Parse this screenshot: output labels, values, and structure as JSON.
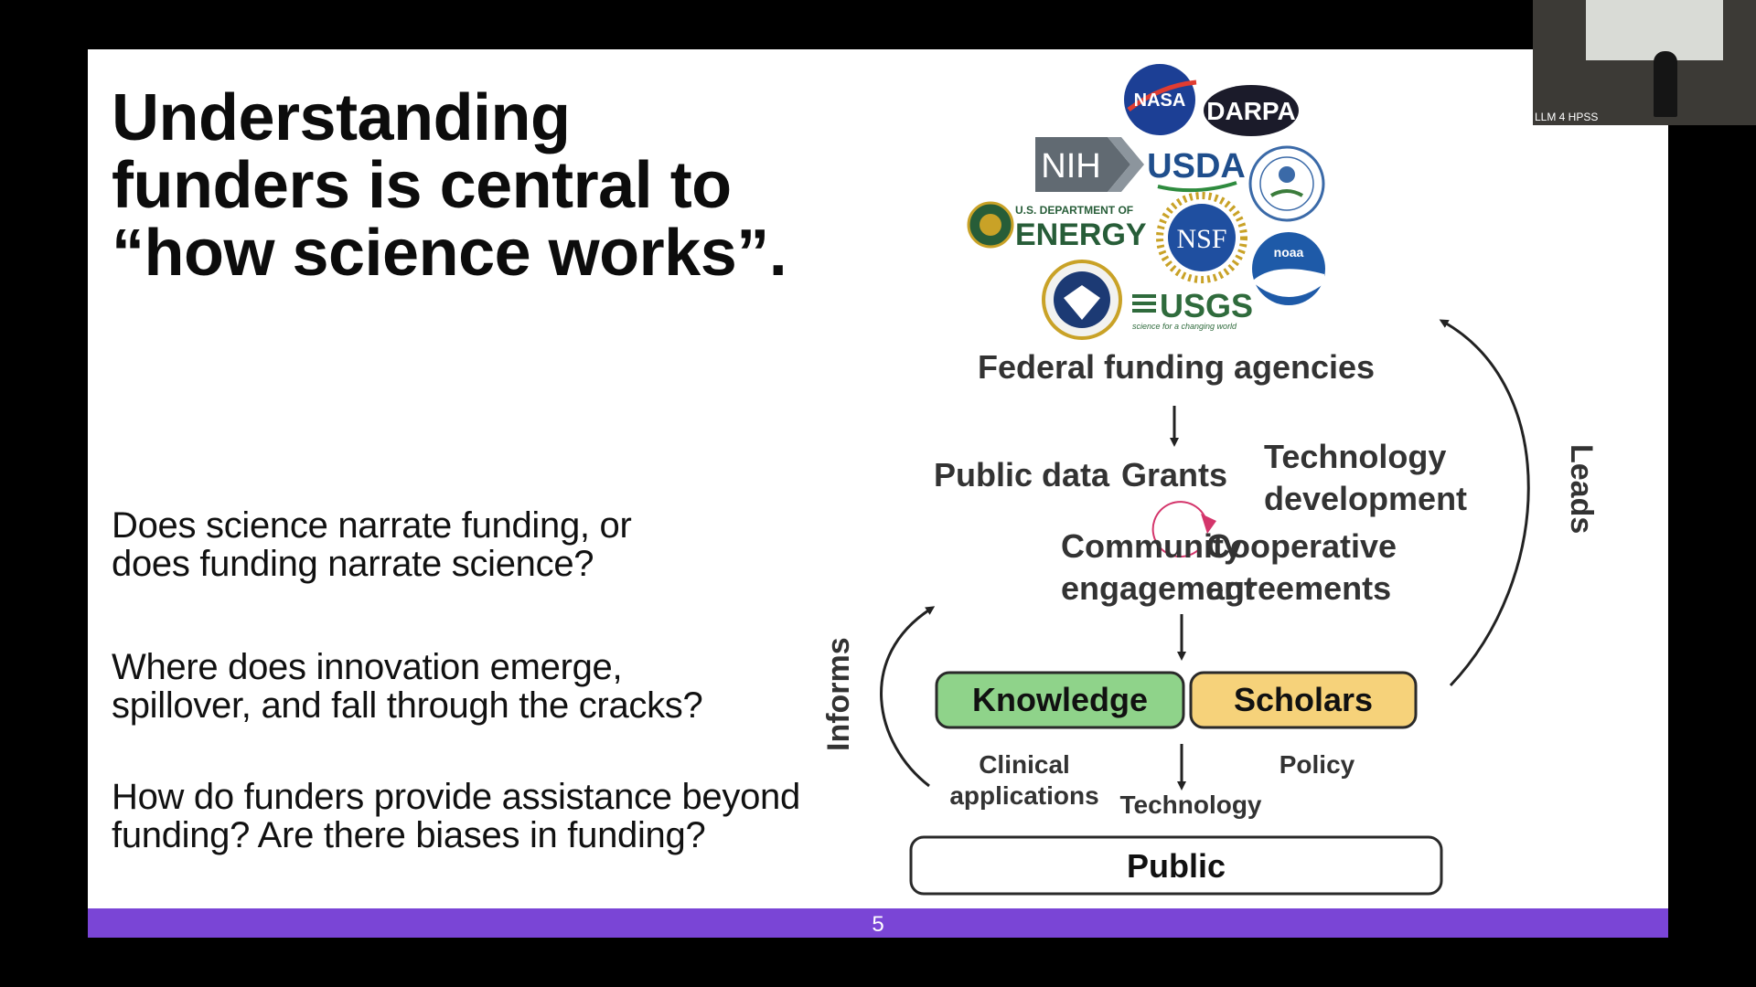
{
  "slide": {
    "title_lines": [
      "Understanding",
      "funders is central to",
      "“how science works”."
    ],
    "questions": [
      {
        "line1": "Does science narrate funding, or",
        "line2": "does funding narrate science?"
      },
      {
        "line1": "Where does innovation emerge,",
        "line2": "spillover, and fall through the cracks?"
      },
      {
        "line1": "How do funders provide assistance beyond",
        "line2": "funding? Are there biases in funding?"
      }
    ],
    "page_number": "5",
    "footer_color": "#7a45d6"
  },
  "logos": {
    "nasa": "NASA",
    "darpa": "DARPA",
    "nih": "NIH",
    "usda": "USDA",
    "doe_small": "U.S. DEPARTMENT OF",
    "doe_big": "ENERGY",
    "nsf": "NSF",
    "noaa": "noaa",
    "usgs": "USGS",
    "usgs_tagline": "science for a changing world"
  },
  "diagram": {
    "agencies_label": "Federal funding agencies",
    "public_data": "Public data",
    "grants": "Grants",
    "tech_dev_line1": "Technology",
    "tech_dev_line2": "development",
    "community_line1": "Community",
    "community_line2": "engagement",
    "coop_line1": "Cooperative",
    "coop_line2": "agreements",
    "knowledge": "Knowledge",
    "scholars": "Scholars",
    "clinical_line1": "Clinical",
    "clinical_line2": "applications",
    "technology": "Technology",
    "policy": "Policy",
    "public": "Public",
    "informs": "Informs",
    "leads": "Leads",
    "colors": {
      "knowledge": "#8fd38a",
      "scholars": "#f6d27a",
      "cycle_arrow": "#d4356b"
    }
  },
  "webcam": {
    "caption": "LLM 4 HPSS"
  }
}
